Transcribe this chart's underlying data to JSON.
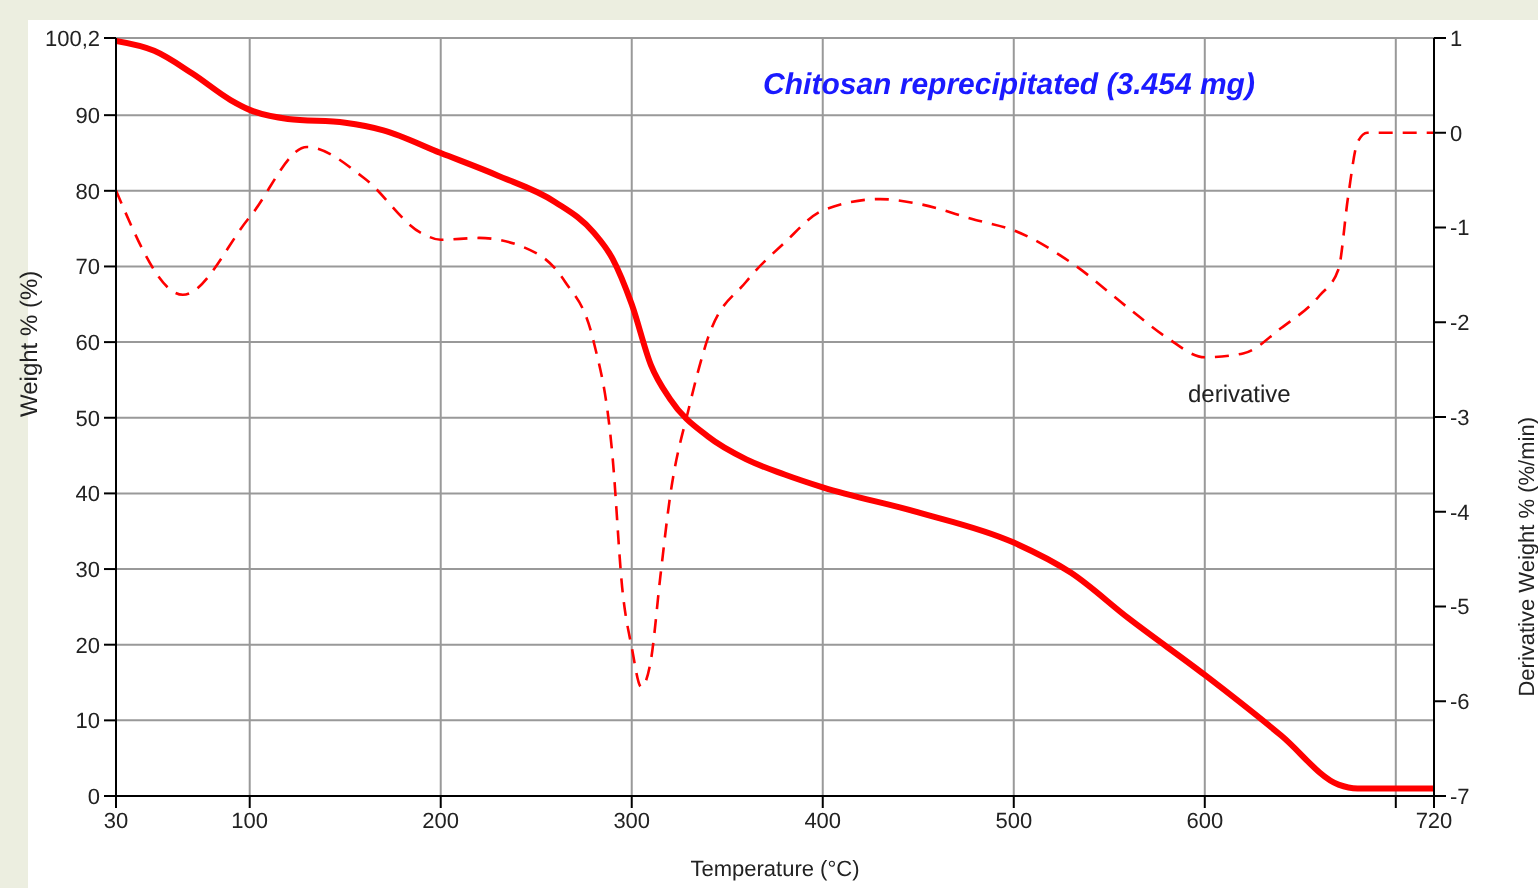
{
  "chart_data": {
    "type": "line",
    "title": "Chitosan reprecipitated (3.454 mg)",
    "xlabel": "Temperature (°C)",
    "ylabel": "Weight % (%)",
    "y2label": "Derivative Weight % (%/min)",
    "xlim": [
      30,
      720
    ],
    "xticks": [
      30,
      100,
      200,
      300,
      400,
      500,
      600,
      {
        "value": 700,
        "label": null
      },
      720
    ],
    "ylim": [
      0,
      100.2
    ],
    "yticks": [
      0,
      10,
      20,
      30,
      40,
      50,
      60,
      70,
      80,
      90,
      {
        "value": 100.2,
        "label": "100,2"
      }
    ],
    "y2lim": [
      -7,
      1
    ],
    "y2ticks": [
      -7,
      -6,
      -5,
      -4,
      -3,
      -2,
      -1,
      0,
      1
    ],
    "grid": true,
    "legend": false,
    "marker": "none",
    "annotations": [
      "derivative"
    ],
    "series": [
      {
        "color": "#ff0000",
        "line_style": "solid",
        "x": [
          30,
          50,
          70,
          90,
          100,
          120,
          150,
          170,
          200,
          230,
          260,
          280,
          290,
          300,
          310,
          320,
          340,
          360,
          380,
          400,
          450,
          500,
          530,
          560,
          600,
          640,
          670,
          680,
          720
        ],
        "values": [
          99.8,
          98.5,
          95.5,
          92,
          90.7,
          89.5,
          89,
          88,
          85,
          82,
          78.5,
          74.5,
          71,
          65,
          57,
          52.5,
          47.5,
          44.5,
          42.5,
          40.8,
          37.5,
          33.5,
          29.5,
          23.5,
          16,
          8,
          1.5,
          1,
          1
        ]
      },
      {
        "color": "#ff0000",
        "line_style": "dashed",
        "axis": "y2",
        "x": [
          30,
          65,
          100,
          130,
          160,
          190,
          200,
          220,
          250,
          265,
          280,
          290,
          295,
          300,
          305,
          310,
          315,
          320,
          330,
          340,
          360,
          380,
          400,
          430,
          450,
          480,
          500,
          530,
          560,
          580,
          600,
          620,
          640,
          660,
          670,
          675,
          680,
          685,
          720
        ],
        "values": [
          -0.61,
          -1.71,
          -0.89,
          -0.15,
          -0.48,
          -1.06,
          -1.13,
          -1.11,
          -1.27,
          -1.57,
          -2.2,
          -3.43,
          -4.8,
          -5.43,
          -5.85,
          -5.57,
          -4.68,
          -3.85,
          -2.9,
          -2.16,
          -1.57,
          -1.16,
          -0.82,
          -0.7,
          -0.75,
          -0.92,
          -1.03,
          -1.37,
          -1.85,
          -2.16,
          -2.37,
          -2.33,
          -2.06,
          -1.72,
          -1.44,
          -0.68,
          -0.1,
          0,
          0
        ]
      }
    ]
  }
}
